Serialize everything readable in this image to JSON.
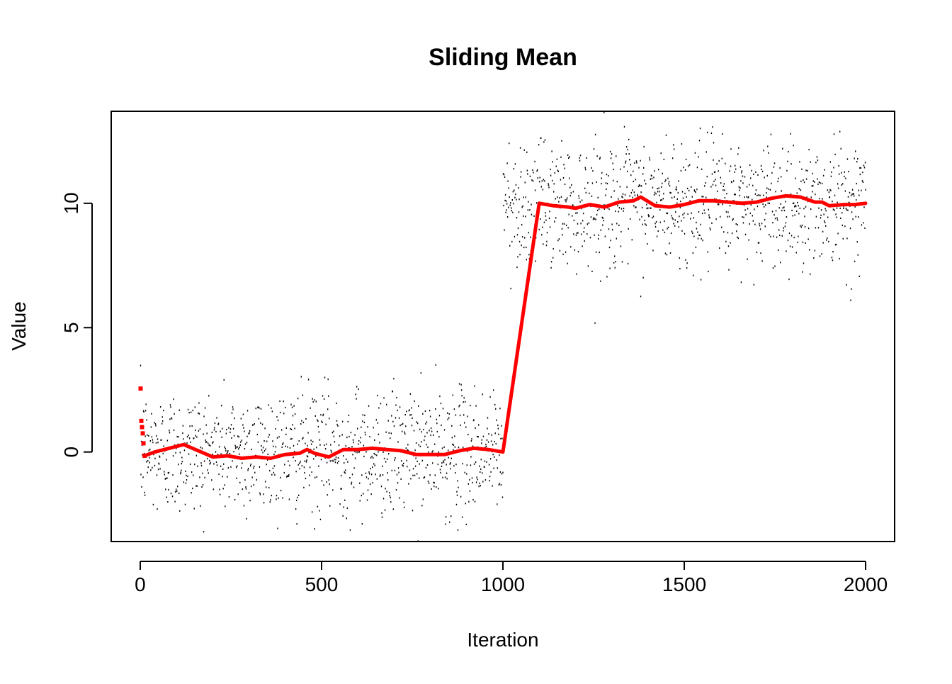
{
  "chart_data": {
    "type": "scatter",
    "title": "Sliding Mean",
    "xlabel": "Iteration",
    "ylabel": "Value",
    "xlim": [
      -80,
      2080
    ],
    "ylim": [
      -3.6,
      13.7
    ],
    "x_ticks": [
      0,
      500,
      1000,
      1500,
      2000
    ],
    "x_tick_labels": [
      "0",
      "500",
      "1000",
      "1500",
      "2000"
    ],
    "y_ticks": [
      0,
      5,
      10
    ],
    "y_tick_labels": [
      "0",
      "5",
      "10"
    ],
    "grid": false,
    "legend": "none",
    "series": [
      {
        "kind": "raw-points",
        "color": "#000000",
        "n": 2000,
        "segments": [
          {
            "x_range": [
              1,
              1000
            ],
            "mean": 0,
            "sd": 1.25
          },
          {
            "x_range": [
              1001,
              2000
            ],
            "mean": 10,
            "sd": 1.25
          }
        ]
      },
      {
        "kind": "sliding-mean",
        "color": "#ff0000",
        "start_points": [
          [
            1,
            2.55
          ],
          [
            3,
            1.25
          ],
          [
            5,
            1.0
          ],
          [
            7,
            0.75
          ],
          [
            9,
            0.35
          ],
          [
            12,
            -0.15
          ]
        ],
        "x": [
          12,
          40,
          80,
          120,
          160,
          200,
          240,
          280,
          320,
          360,
          400,
          440,
          460,
          480,
          520,
          560,
          600,
          640,
          680,
          720,
          760,
          800,
          840,
          880,
          920,
          960,
          1000,
          1100,
          1140,
          1180,
          1200,
          1240,
          1280,
          1320,
          1360,
          1380,
          1420,
          1460,
          1500,
          1540,
          1580,
          1620,
          1660,
          1700,
          1740,
          1780,
          1820,
          1860,
          1880,
          1900,
          1940,
          1970,
          2000
        ],
        "values": [
          -0.15,
          0.0,
          0.15,
          0.3,
          0.05,
          -0.2,
          -0.15,
          -0.25,
          -0.2,
          -0.25,
          -0.1,
          -0.05,
          0.1,
          -0.05,
          -0.2,
          0.1,
          0.1,
          0.15,
          0.1,
          0.05,
          -0.1,
          -0.1,
          -0.1,
          0.05,
          0.15,
          0.1,
          0.0,
          10.0,
          9.9,
          9.85,
          9.8,
          9.95,
          9.85,
          10.05,
          10.1,
          10.25,
          9.9,
          9.85,
          9.95,
          10.1,
          10.1,
          10.05,
          10.0,
          10.05,
          10.2,
          10.3,
          10.25,
          10.05,
          10.05,
          9.9,
          9.95,
          9.95,
          10.0
        ]
      }
    ]
  }
}
